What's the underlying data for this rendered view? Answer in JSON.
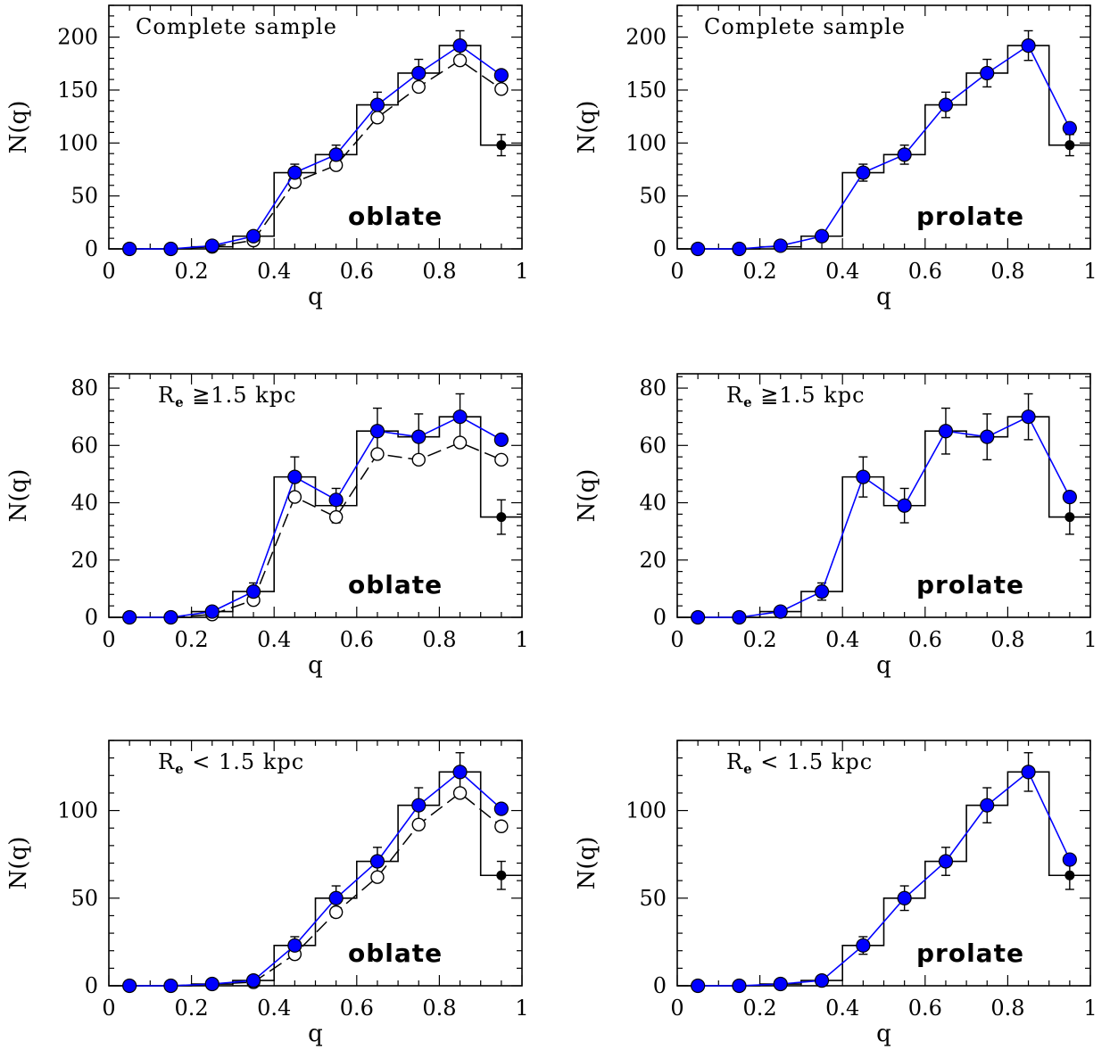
{
  "colors": {
    "model": "#0000ff",
    "hist": "#000000",
    "open": "#000000"
  },
  "chart_data": [
    {
      "type": "line",
      "xlabel": "q",
      "ylabel": "N(q)",
      "xlim": [
        0,
        1
      ],
      "ylim": [
        0,
        230
      ],
      "xticks": [
        0,
        0.2,
        0.4,
        0.6,
        0.8,
        1
      ],
      "xtick_labels": [
        "0",
        "0.2",
        "0.4",
        "0.6",
        "0.8",
        "1"
      ],
      "yticks": [
        0,
        50,
        100,
        150,
        200
      ],
      "ytick_labels": [
        "0",
        "50",
        "100",
        "150",
        "200"
      ],
      "annotation": "Complete sample",
      "model_label": "oblate",
      "x": [
        0.05,
        0.15,
        0.25,
        0.35,
        0.45,
        0.55,
        0.65,
        0.75,
        0.85,
        0.95
      ],
      "histogram": [
        0,
        0,
        2,
        12,
        72,
        89,
        136,
        166,
        192,
        98
      ],
      "hist_errors": [
        0,
        0,
        0,
        4,
        8,
        9,
        12,
        13,
        14,
        10
      ],
      "extra_point": {
        "x": 0.95,
        "y": 98,
        "err": 10
      },
      "model": [
        0,
        0,
        3,
        12,
        72,
        89,
        136,
        166,
        192,
        164
      ],
      "open_model": [
        0,
        0,
        2,
        8,
        63,
        79,
        124,
        153,
        178,
        151
      ]
    },
    {
      "type": "line",
      "xlabel": "q",
      "ylabel": "N(q)",
      "xlim": [
        0,
        1
      ],
      "ylim": [
        0,
        230
      ],
      "xticks": [
        0,
        0.2,
        0.4,
        0.6,
        0.8,
        1
      ],
      "xtick_labels": [
        "0",
        "0.2",
        "0.4",
        "0.6",
        "0.8",
        "1"
      ],
      "yticks": [
        0,
        50,
        100,
        150,
        200
      ],
      "ytick_labels": [
        "0",
        "50",
        "100",
        "150",
        "200"
      ],
      "annotation": "Complete sample",
      "model_label": "prolate",
      "x": [
        0.05,
        0.15,
        0.25,
        0.35,
        0.45,
        0.55,
        0.65,
        0.75,
        0.85,
        0.95
      ],
      "histogram": [
        0,
        0,
        2,
        12,
        72,
        89,
        136,
        166,
        192,
        98
      ],
      "hist_errors": [
        0,
        0,
        0,
        4,
        8,
        9,
        12,
        13,
        14,
        10
      ],
      "extra_point": {
        "x": 0.95,
        "y": 98,
        "err": 10
      },
      "model": [
        0,
        0,
        3,
        12,
        72,
        89,
        136,
        166,
        192,
        114
      ],
      "open_model": []
    },
    {
      "type": "line",
      "xlabel": "q",
      "ylabel": "N(q)",
      "xlim": [
        0,
        1
      ],
      "ylim": [
        0,
        85
      ],
      "xticks": [
        0,
        0.2,
        0.4,
        0.6,
        0.8,
        1
      ],
      "xtick_labels": [
        "0",
        "0.2",
        "0.4",
        "0.6",
        "0.8",
        "1"
      ],
      "yticks": [
        0,
        20,
        40,
        60,
        80
      ],
      "ytick_labels": [
        "0",
        "20",
        "40",
        "60",
        "80"
      ],
      "annotation": "R",
      "annotation_sub": "e",
      "annotation_rest": " ≧1.5 kpc",
      "model_label": "oblate",
      "x": [
        0.05,
        0.15,
        0.25,
        0.35,
        0.45,
        0.55,
        0.65,
        0.75,
        0.85,
        0.95
      ],
      "histogram": [
        0,
        0,
        2,
        9,
        49,
        39,
        65,
        63,
        70,
        35
      ],
      "hist_errors": [
        0,
        0,
        1,
        3,
        7,
        6,
        8,
        8,
        8,
        6
      ],
      "extra_point": {
        "x": 0.95,
        "y": 35,
        "err": 6
      },
      "model": [
        0,
        0,
        2,
        9,
        49,
        41,
        65,
        63,
        70,
        62
      ],
      "open_model": [
        0,
        0,
        1,
        6,
        42,
        35,
        57,
        55,
        61,
        55
      ]
    },
    {
      "type": "line",
      "xlabel": "q",
      "ylabel": "N(q)",
      "xlim": [
        0,
        1
      ],
      "ylim": [
        0,
        85
      ],
      "xticks": [
        0,
        0.2,
        0.4,
        0.6,
        0.8,
        1
      ],
      "xtick_labels": [
        "0",
        "0.2",
        "0.4",
        "0.6",
        "0.8",
        "1"
      ],
      "yticks": [
        0,
        20,
        40,
        60,
        80
      ],
      "ytick_labels": [
        "0",
        "20",
        "40",
        "60",
        "80"
      ],
      "annotation": "R",
      "annotation_sub": "e",
      "annotation_rest": " ≧1.5 kpc",
      "model_label": "prolate",
      "x": [
        0.05,
        0.15,
        0.25,
        0.35,
        0.45,
        0.55,
        0.65,
        0.75,
        0.85,
        0.95
      ],
      "histogram": [
        0,
        0,
        2,
        9,
        49,
        39,
        65,
        63,
        70,
        35
      ],
      "hist_errors": [
        0,
        0,
        1,
        3,
        7,
        6,
        8,
        8,
        8,
        6
      ],
      "extra_point": {
        "x": 0.95,
        "y": 35,
        "err": 6
      },
      "model": [
        0,
        0,
        2,
        9,
        49,
        39,
        65,
        63,
        70,
        42
      ],
      "open_model": []
    },
    {
      "type": "line",
      "xlabel": "q",
      "ylabel": "N(q)",
      "xlim": [
        0,
        1
      ],
      "ylim": [
        0,
        140
      ],
      "xticks": [
        0,
        0.2,
        0.4,
        0.6,
        0.8,
        1
      ],
      "xtick_labels": [
        "0",
        "0.2",
        "0.4",
        "0.6",
        "0.8",
        "1"
      ],
      "yticks": [
        0,
        50,
        100
      ],
      "ytick_labels": [
        "0",
        "50",
        "100"
      ],
      "annotation": "R",
      "annotation_sub": "e",
      "annotation_rest": " < 1.5 kpc",
      "model_label": "oblate",
      "x": [
        0.05,
        0.15,
        0.25,
        0.35,
        0.45,
        0.55,
        0.65,
        0.75,
        0.85,
        0.95
      ],
      "histogram": [
        0,
        0,
        1,
        3,
        23,
        50,
        71,
        103,
        122,
        63
      ],
      "hist_errors": [
        0,
        0,
        1,
        2,
        5,
        7,
        8,
        10,
        11,
        8
      ],
      "extra_point": {
        "x": 0.95,
        "y": 63,
        "err": 8
      },
      "model": [
        0,
        0,
        1,
        3,
        23,
        50,
        71,
        103,
        122,
        101
      ],
      "open_model": [
        0,
        0,
        1,
        2,
        18,
        42,
        62,
        92,
        110,
        91
      ]
    },
    {
      "type": "line",
      "xlabel": "q",
      "ylabel": "N(q)",
      "xlim": [
        0,
        1
      ],
      "ylim": [
        0,
        140
      ],
      "xticks": [
        0,
        0.2,
        0.4,
        0.6,
        0.8,
        1
      ],
      "xtick_labels": [
        "0",
        "0.2",
        "0.4",
        "0.6",
        "0.8",
        "1"
      ],
      "yticks": [
        0,
        50,
        100
      ],
      "ytick_labels": [
        "0",
        "50",
        "100"
      ],
      "annotation": "R",
      "annotation_sub": "e",
      "annotation_rest": " < 1.5 kpc",
      "model_label": "prolate",
      "x": [
        0.05,
        0.15,
        0.25,
        0.35,
        0.45,
        0.55,
        0.65,
        0.75,
        0.85,
        0.95
      ],
      "histogram": [
        0,
        0,
        1,
        3,
        23,
        50,
        71,
        103,
        122,
        63
      ],
      "hist_errors": [
        0,
        0,
        1,
        2,
        5,
        7,
        8,
        10,
        11,
        8
      ],
      "extra_point": {
        "x": 0.95,
        "y": 63,
        "err": 8
      },
      "model": [
        0,
        0,
        1,
        3,
        23,
        50,
        71,
        103,
        122,
        72
      ],
      "open_model": []
    }
  ]
}
